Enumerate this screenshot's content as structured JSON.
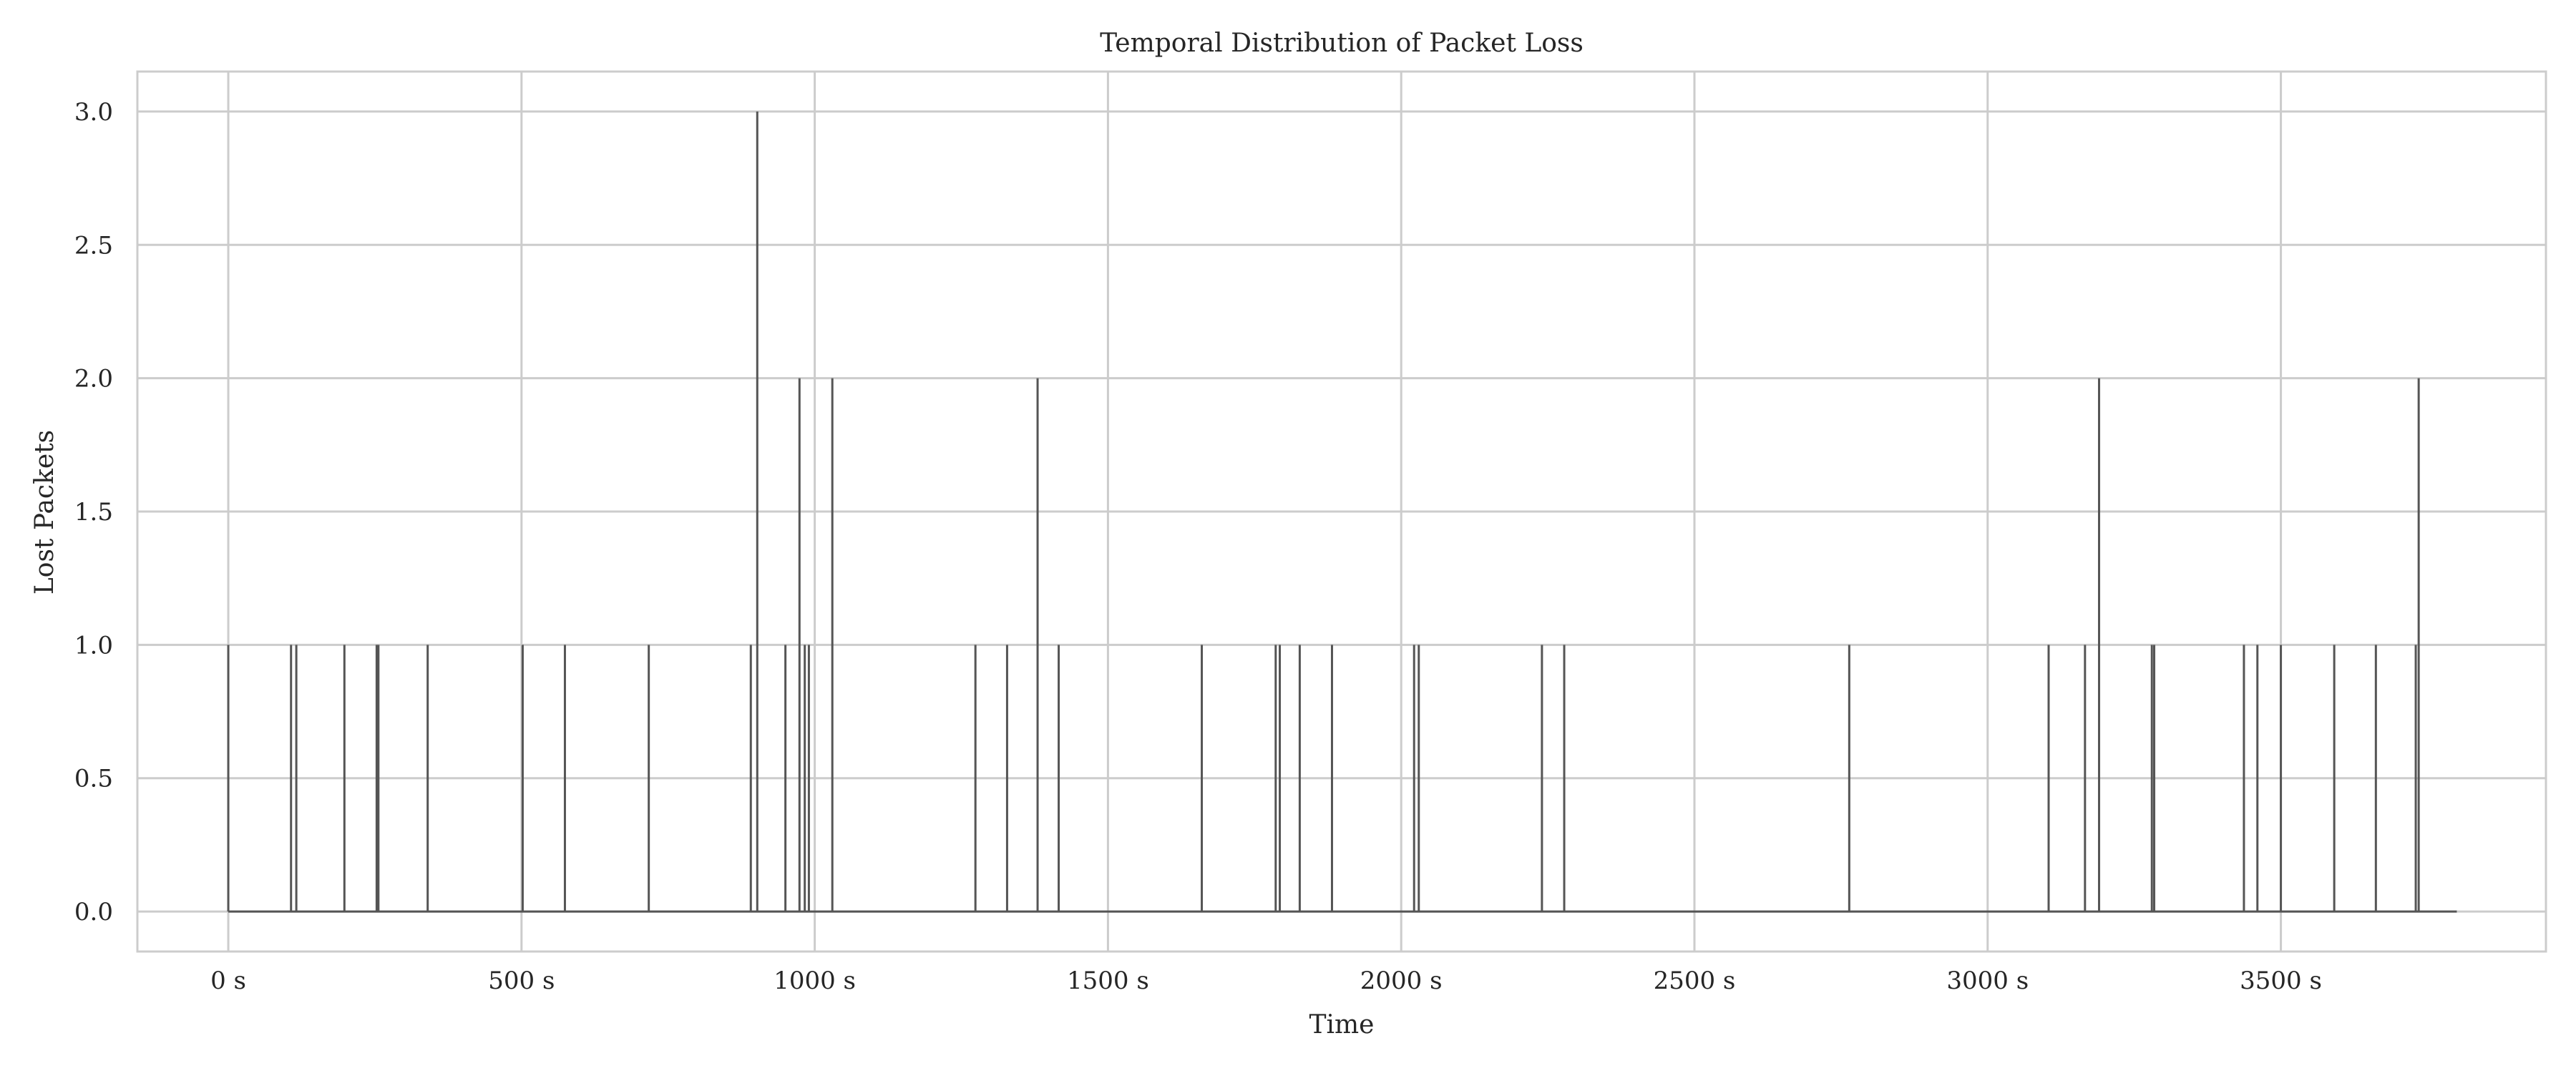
{
  "chart_data": {
    "type": "line",
    "title": "Temporal Distribution of Packet Loss",
    "xlabel": "Time",
    "ylabel": "Lost Packets",
    "xlim": [
      -155,
      3952
    ],
    "ylim": [
      -0.15,
      3.15
    ],
    "x_ticks": [
      0,
      500,
      1000,
      1500,
      2000,
      2500,
      3000,
      3500
    ],
    "x_tick_labels": [
      "0 s",
      "500 s",
      "1000 s",
      "1500 s",
      "2000 s",
      "2500 s",
      "3000 s",
      "3500 s"
    ],
    "y_ticks": [
      0,
      0.5,
      1,
      1.5,
      2,
      2.5,
      3
    ],
    "y_tick_labels": [
      "0.0",
      "0.5",
      "1.0",
      "1.5",
      "2.0",
      "2.5",
      "3.0"
    ],
    "grid": true,
    "legend": "none",
    "baseline_x_range": [
      0,
      3800
    ],
    "series": [
      {
        "x": [
          0,
          107,
          116,
          198,
          253,
          256,
          340,
          502,
          574,
          717,
          891,
          902,
          950,
          974,
          983,
          990,
          1030,
          1274,
          1328,
          1380,
          1416,
          1660,
          1786,
          1793,
          1827,
          1882,
          2022,
          2030,
          2240,
          2278,
          2764,
          3104,
          3166,
          3190,
          3280,
          3284,
          3437,
          3460,
          3500,
          3591,
          3662,
          3730,
          3735
        ],
        "values": [
          1,
          1,
          1,
          1,
          1,
          1,
          1,
          1,
          1,
          1,
          1,
          3,
          1,
          2,
          1,
          1,
          2,
          1,
          1,
          2,
          1,
          1,
          1,
          1,
          1,
          1,
          1,
          1,
          1,
          1,
          1,
          1,
          1,
          2,
          1,
          1,
          1,
          1,
          1,
          1,
          1,
          1,
          2
        ]
      }
    ],
    "colors": {
      "line": "#555555",
      "grid": "#cccccc",
      "frame": "#cccccc",
      "text": "#262626"
    }
  }
}
